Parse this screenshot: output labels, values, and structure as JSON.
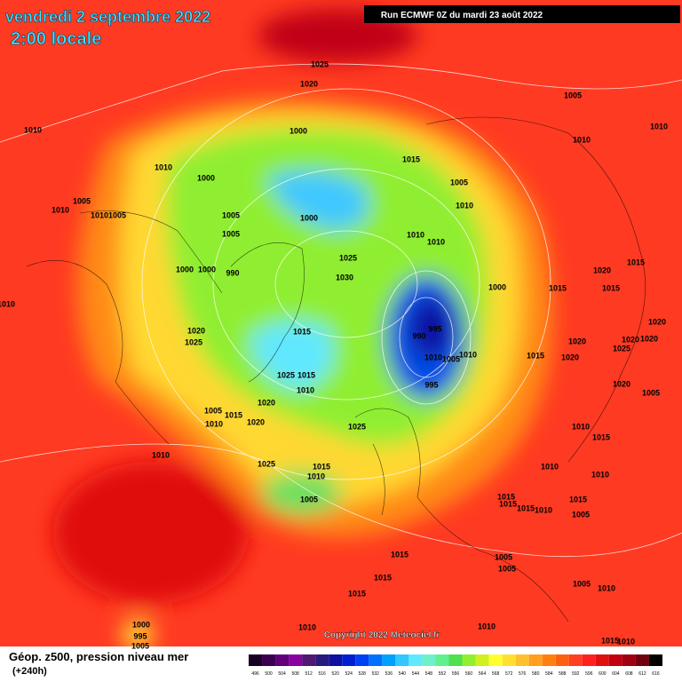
{
  "header": {
    "date": "vendredi 2 septembre 2022",
    "time": "2:00 locale",
    "run": "Run ECMWF 0Z du mardi 23 août 2022"
  },
  "map": {
    "copyright": "Copyright 2022 Meteociel.fr",
    "isobar_labels": [
      1025,
      1020,
      1005,
      1010,
      1000,
      1010,
      1010,
      1015,
      1010,
      1000,
      1005,
      1005,
      1010,
      1010,
      1005,
      1005,
      1000,
      1010,
      1005,
      1010,
      1010,
      1025,
      1020,
      1015,
      1000,
      1000,
      990,
      1030,
      1000,
      1015,
      1015,
      1010,
      995,
      990,
      1020,
      1015,
      1020,
      1025,
      1020,
      1020,
      1020,
      1025,
      1010,
      1005,
      1010,
      1015,
      1020,
      1025,
      1015,
      1010,
      995,
      1020,
      1005,
      1020,
      1005,
      1015,
      1010,
      1020,
      1025,
      1010,
      1015,
      1010,
      1025,
      1015,
      1010,
      1010,
      1010,
      1005,
      1015,
      1015,
      1015,
      1010,
      1015,
      1005,
      1015,
      1005,
      1015,
      1005,
      1005,
      1010,
      1015,
      1010,
      1010,
      1000,
      995,
      1005,
      1010,
      1015
    ]
  },
  "footer": {
    "title": "Géop. z500, pression niveau mer",
    "lead": "(+240h)",
    "scale": {
      "values": [
        496,
        500,
        504,
        508,
        512,
        516,
        520,
        524,
        528,
        532,
        536,
        540,
        544,
        548,
        552,
        556,
        560,
        564,
        568,
        572,
        576,
        580,
        584,
        588,
        592,
        596,
        600,
        604,
        608,
        612,
        616
      ],
      "colors": [
        "#1a0020",
        "#3a0050",
        "#600078",
        "#8a00a0",
        "#50186e",
        "#281a7a",
        "#1010a0",
        "#0020d0",
        "#0040f0",
        "#0070ff",
        "#00a0ff",
        "#30c8ff",
        "#60e8ff",
        "#70f0c8",
        "#60f090",
        "#50e050",
        "#90f030",
        "#d0f020",
        "#ffff30",
        "#ffe030",
        "#ffc030",
        "#ffa020",
        "#ff8010",
        "#ff6010",
        "#ff4020",
        "#ff2020",
        "#e01010",
        "#c00010",
        "#a00010",
        "#700010",
        "#000000"
      ]
    }
  }
}
